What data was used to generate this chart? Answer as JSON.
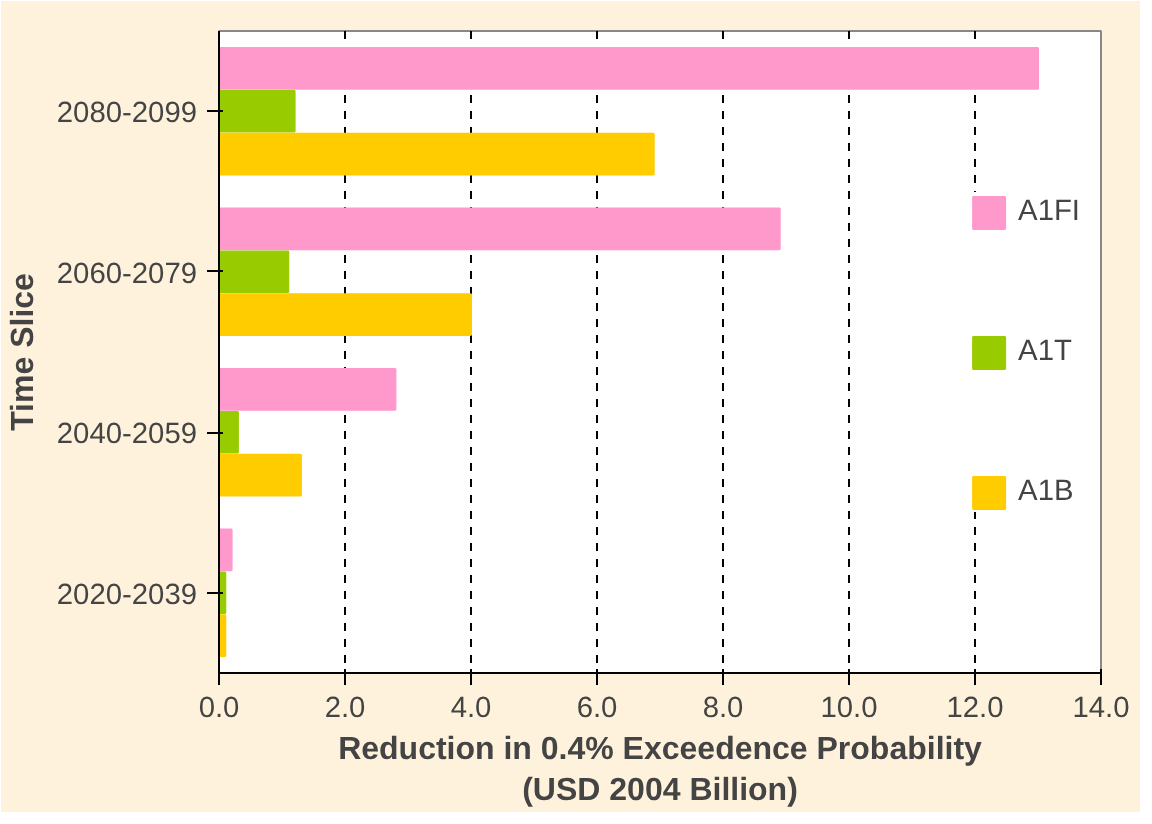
{
  "chart_data": {
    "type": "bar",
    "orientation": "horizontal",
    "ylabel": "Time Slice",
    "xlabel": "Reduction in 0.4% Exceedence Probability\n(USD 2004 Billion)",
    "categories": [
      "2080-2099",
      "2060-2079",
      "2040-2059",
      "2020-2039"
    ],
    "series": [
      {
        "name": "A1FI",
        "color": "#ff99cc",
        "values": [
          13.0,
          8.9,
          2.8,
          0.2
        ]
      },
      {
        "name": "A1T",
        "color": "#99cc00",
        "values": [
          1.2,
          1.1,
          0.3,
          0.1
        ]
      },
      {
        "name": "A1B",
        "color": "#ffcc00",
        "values": [
          6.9,
          4.0,
          1.3,
          0.1
        ]
      }
    ],
    "xlim": [
      0,
      14
    ],
    "xticks": [
      {
        "value": 0,
        "label": "0.0"
      },
      {
        "value": 2,
        "label": "2.0"
      },
      {
        "value": 4,
        "label": "4.0"
      },
      {
        "value": 6,
        "label": "6.0"
      },
      {
        "value": 8,
        "label": "8.0"
      },
      {
        "value": 10,
        "label": "10.0"
      },
      {
        "value": 12,
        "label": "12.0"
      },
      {
        "value": 14,
        "label": "14.0"
      }
    ],
    "grid": "x",
    "legend": "right"
  }
}
